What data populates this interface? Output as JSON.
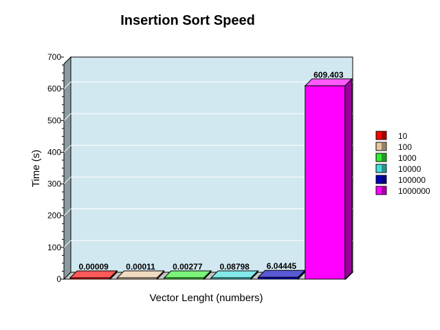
{
  "chart_data": {
    "type": "bar",
    "title": "Insertion Sort Speed",
    "xlabel": "Vector Lenght (numbers)",
    "ylabel": "Time (s)",
    "ylim": [
      0,
      700
    ],
    "yticks": [
      0,
      100,
      200,
      300,
      400,
      500,
      600,
      700
    ],
    "grid": true,
    "legend_position": "right",
    "series": [
      {
        "name": "10",
        "value": 9e-05,
        "label": "0.00009",
        "color": "#ff0000"
      },
      {
        "name": "100",
        "value": 0.00011,
        "label": "0.00011",
        "color": "#e8c8a0"
      },
      {
        "name": "1000",
        "value": 0.00277,
        "label": "0.00277",
        "color": "#33ee33"
      },
      {
        "name": "10000",
        "value": 0.08798,
        "label": "0.08798",
        "color": "#44dddd"
      },
      {
        "name": "100000",
        "value": 6.04445,
        "label": "6.04445",
        "color": "#0000bb"
      },
      {
        "name": "1000000",
        "value": 609.403,
        "label": "609.403",
        "color": "#ff00ff"
      }
    ],
    "colors": {
      "plot_background": "#d2e8f0",
      "left_wall": "#8a9aa0",
      "floor": "#c8c8c8"
    }
  }
}
